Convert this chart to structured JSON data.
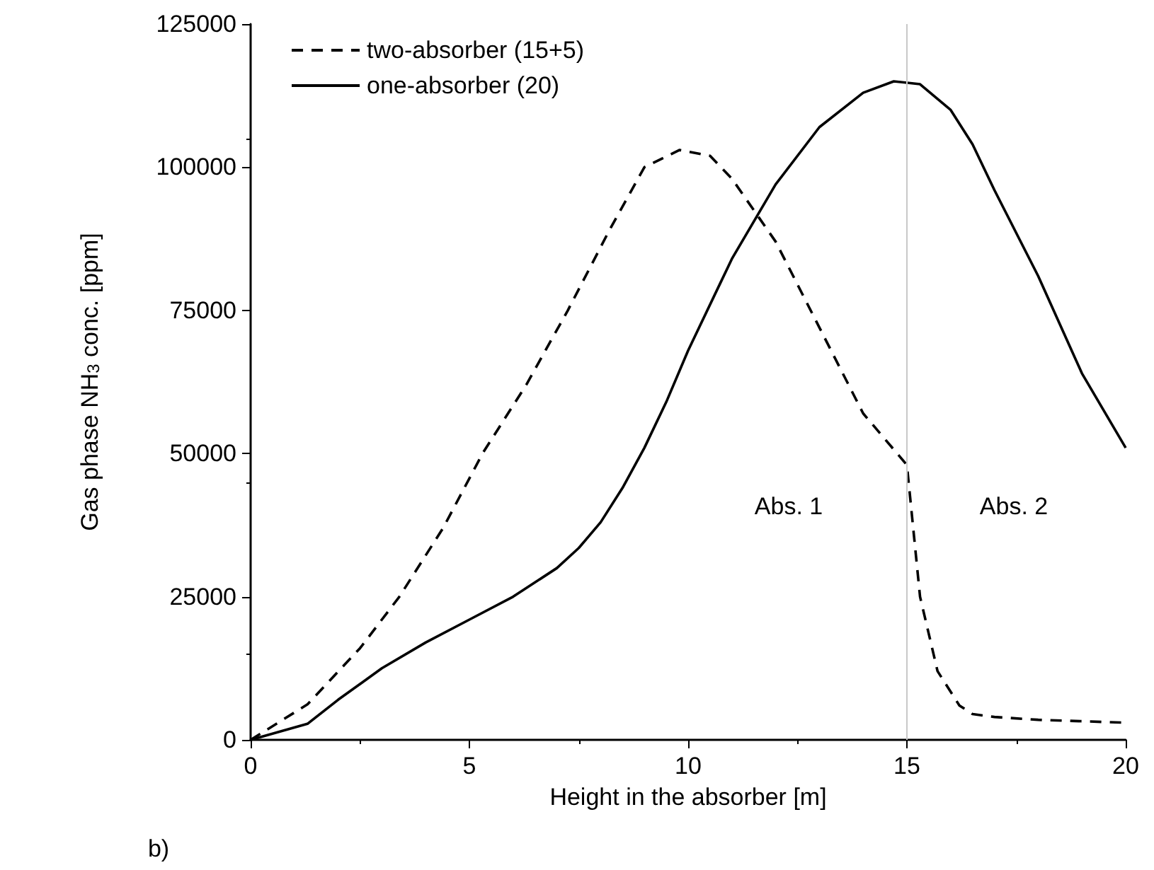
{
  "chart_data": {
    "type": "line",
    "xlabel": "Height in the absorber [m]",
    "ylabel": "Gas phase NH$_{3}$ conc. [ppm]",
    "xlim": [
      0,
      20
    ],
    "xticks": [
      0,
      5,
      10,
      15,
      20
    ],
    "ylim": [
      0,
      125000
    ],
    "yticks": [
      0,
      25000,
      50000,
      75000,
      100000,
      125000
    ],
    "grid": false,
    "legend": "top left",
    "marker": "none",
    "series": [
      {
        "name": "two-absorber (15+5)",
        "color": "#000000",
        "line_style": "dashed",
        "x": [
          0,
          1.3,
          2.5,
          3.4,
          4.4,
          5.3,
          6.3,
          7.25,
          8.2,
          9,
          9.8,
          10.5,
          11,
          12,
          13,
          14,
          15,
          15.3,
          15.7,
          16.2,
          16.5,
          17,
          18,
          20
        ],
        "values": [
          0,
          6200,
          16000,
          25000,
          37000,
          50000,
          62000,
          75000,
          89000,
          100000,
          103000,
          102000,
          98000,
          87000,
          72000,
          57000,
          48000,
          25000,
          12000,
          6000,
          4500,
          4000,
          3500,
          3000
        ]
      },
      {
        "name": "one-absorber (20)",
        "color": "#000000",
        "line_style": "solid",
        "x": [
          0,
          1.3,
          2,
          3,
          4,
          5,
          6,
          7,
          7.5,
          8,
          8.5,
          9,
          9.5,
          10,
          11,
          12,
          13,
          14,
          14.7,
          15.3,
          16,
          16.5,
          17,
          18,
          19,
          20
        ],
        "values": [
          0,
          2800,
          7000,
          12500,
          17000,
          21000,
          25000,
          30000,
          33500,
          38000,
          44000,
          51000,
          59000,
          68000,
          84000,
          97000,
          107000,
          113000,
          115000,
          114500,
          110000,
          104000,
          96000,
          81000,
          64000,
          51000
        ]
      }
    ],
    "ref_lines": [
      {
        "axis": "x",
        "value": 15,
        "color": "#c8c8c8"
      }
    ],
    "annotations": [
      "Abs. 1",
      "Abs. 2",
      "b)"
    ]
  }
}
